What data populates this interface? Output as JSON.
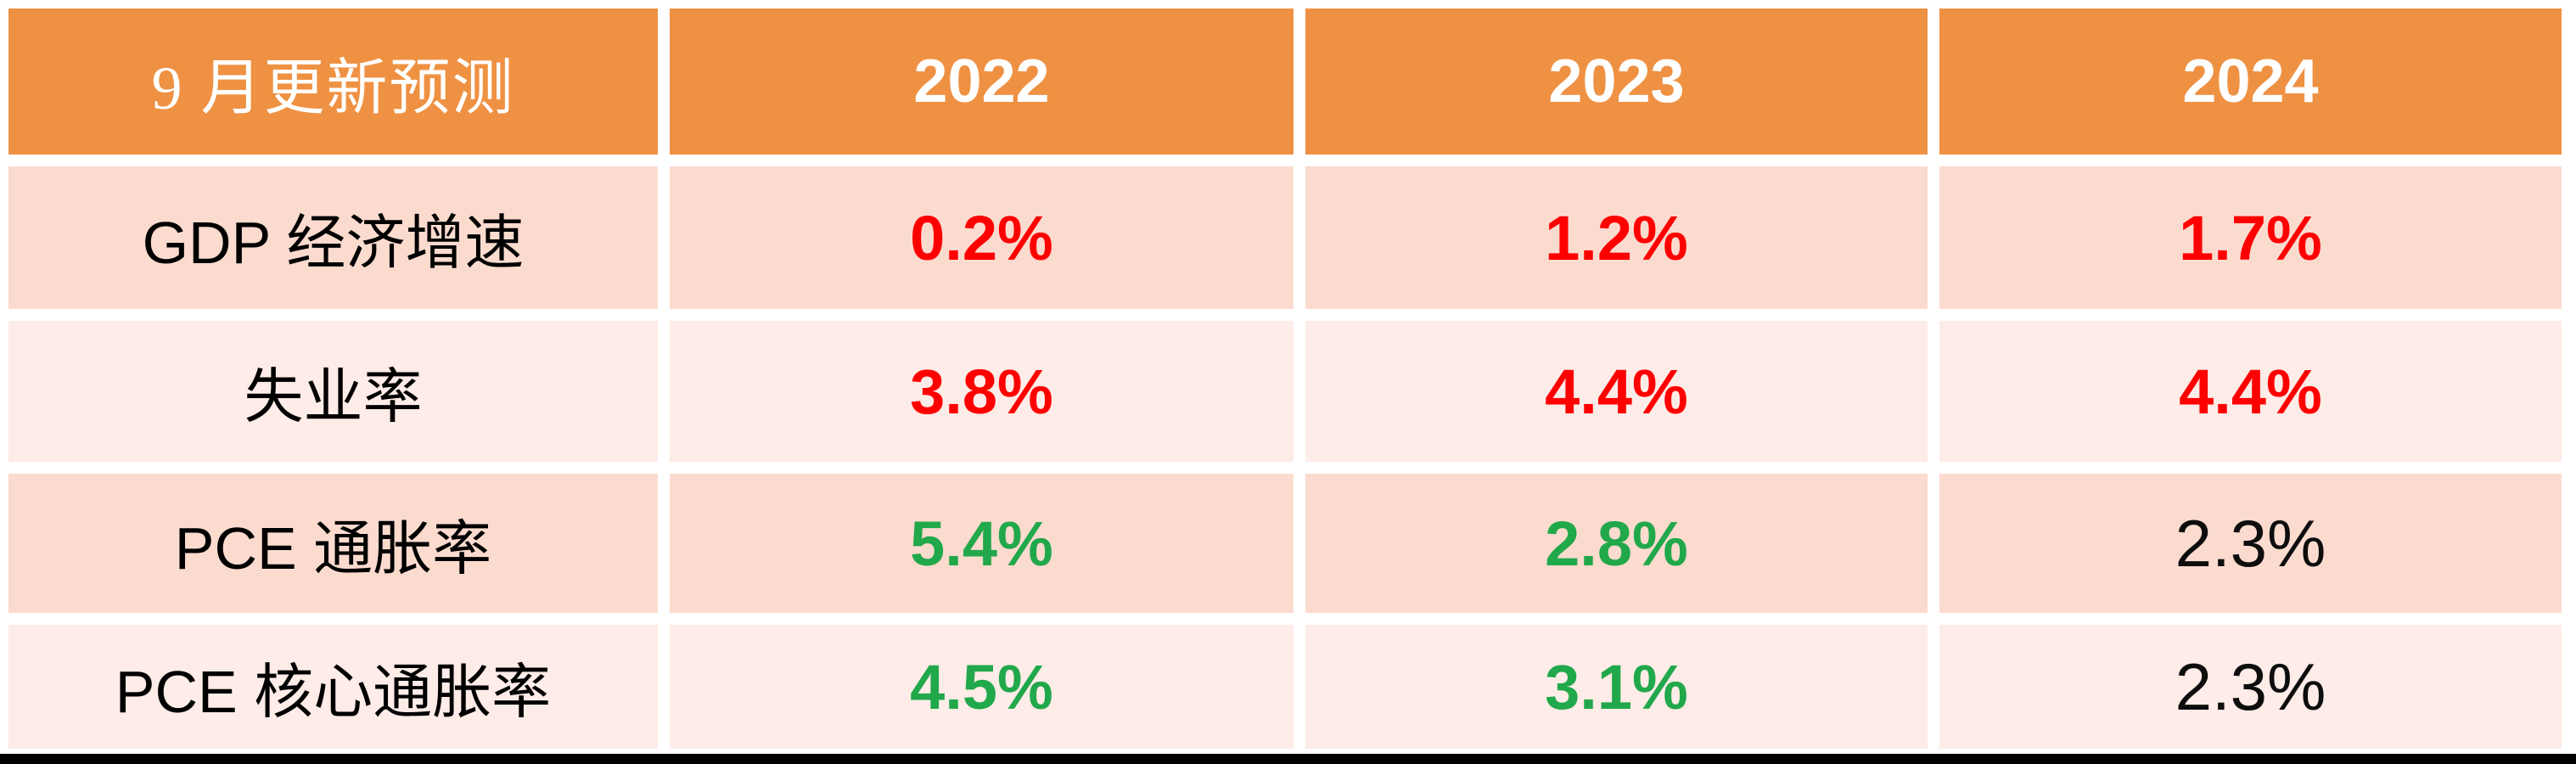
{
  "colors": {
    "header_bg": "#ef9143",
    "header_text": "#ffffff",
    "band_dark": "#fcdbcf",
    "band_light": "#fdece7",
    "red": "#ff0000",
    "green": "#21a84b",
    "black_value": "#0d0d0d",
    "bottom_bar": "#000000"
  },
  "table": {
    "header": {
      "label": "9 月更新预测",
      "years": [
        "2022",
        "2023",
        "2024"
      ]
    },
    "rows": [
      {
        "label": "GDP 经济增速",
        "cells": [
          {
            "text": "0.2%",
            "color": "#ff0000"
          },
          {
            "text": "1.2%",
            "color": "#ff0000"
          },
          {
            "text": "1.7%",
            "color": "#ff0000"
          }
        ]
      },
      {
        "label": "失业率",
        "cells": [
          {
            "text": "3.8%",
            "color": "#ff0000"
          },
          {
            "text": "4.4%",
            "color": "#ff0000"
          },
          {
            "text": "4.4%",
            "color": "#ff0000"
          }
        ]
      },
      {
        "label": "PCE 通胀率",
        "cells": [
          {
            "text": "5.4%",
            "color": "#21a84b"
          },
          {
            "text": "2.8%",
            "color": "#21a84b"
          },
          {
            "text": "2.3%",
            "color": "#0d0d0d"
          }
        ]
      },
      {
        "label": "PCE 核心通胀率",
        "cells": [
          {
            "text": "4.5%",
            "color": "#21a84b"
          },
          {
            "text": "3.1%",
            "color": "#21a84b"
          },
          {
            "text": "2.3%",
            "color": "#0d0d0d"
          }
        ]
      }
    ]
  },
  "chart_data": {
    "type": "table",
    "title": "9 月更新预测",
    "columns": [
      "9 月更新预测",
      "2022",
      "2023",
      "2024"
    ],
    "rows": [
      {
        "label": "GDP 经济增速",
        "values": [
          "0.2%",
          "1.2%",
          "1.7%"
        ],
        "value_colors": [
          "red",
          "red",
          "red"
        ]
      },
      {
        "label": "失业率",
        "values": [
          "3.8%",
          "4.4%",
          "4.4%"
        ],
        "value_colors": [
          "red",
          "red",
          "red"
        ]
      },
      {
        "label": "PCE 通胀率",
        "values": [
          "5.4%",
          "2.8%",
          "2.3%"
        ],
        "value_colors": [
          "green",
          "green",
          "black"
        ]
      },
      {
        "label": "PCE 核心通胀率",
        "values": [
          "4.5%",
          "3.1%",
          "2.3%"
        ],
        "value_colors": [
          "green",
          "green",
          "black"
        ]
      }
    ],
    "layout_hints": {
      "header_bg": "#ef9143",
      "row_banding": [
        "#fcdbcf",
        "#fdece7",
        "#fcdbcf",
        "#fdece7"
      ],
      "bold_values": true,
      "black_values_regular_weight": true
    }
  }
}
